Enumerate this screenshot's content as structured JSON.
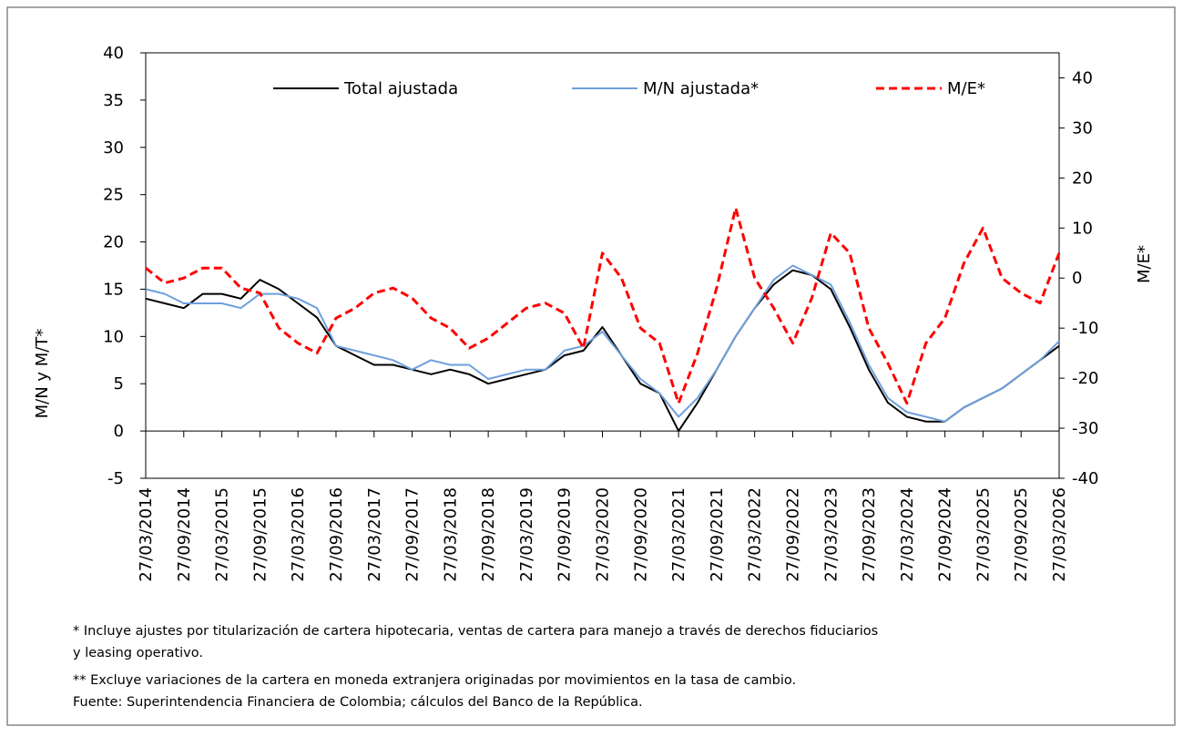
{
  "chart_data": {
    "type": "line",
    "ylabel": "M/N y M/T*",
    "y2label": "M/E*",
    "ylim": [
      -5,
      40
    ],
    "yticks": [
      -5,
      0,
      5,
      10,
      15,
      20,
      25,
      30,
      35,
      40
    ],
    "y2lim": [
      -40,
      45
    ],
    "y2ticks": [
      -40,
      -30,
      -20,
      -10,
      0,
      10,
      20,
      30,
      40
    ],
    "xlim": [
      "27/03/2014",
      "27/03/2026"
    ],
    "xticks": [
      "27/03/2014",
      "27/09/2014",
      "27/03/2015",
      "27/09/2015",
      "27/03/2016",
      "27/09/2016",
      "27/03/2017",
      "27/09/2017",
      "27/03/2018",
      "27/09/2018",
      "27/03/2019",
      "27/09/2019",
      "27/03/2020",
      "27/09/2020",
      "27/03/2021",
      "27/09/2021",
      "27/03/2022",
      "27/09/2022",
      "27/03/2023",
      "27/09/2023",
      "27/03/2024",
      "27/09/2024",
      "27/03/2025",
      "27/09/2025",
      "27/03/2026"
    ],
    "x": [
      "27/03/2014",
      "27/06/2014",
      "27/09/2014",
      "27/12/2014",
      "27/03/2015",
      "27/06/2015",
      "27/09/2015",
      "27/12/2015",
      "27/03/2016",
      "27/06/2016",
      "27/09/2016",
      "27/12/2016",
      "27/03/2017",
      "27/06/2017",
      "27/09/2017",
      "27/12/2017",
      "27/03/2018",
      "27/06/2018",
      "27/09/2018",
      "27/12/2018",
      "27/03/2019",
      "27/06/2019",
      "27/09/2019",
      "27/12/2019",
      "27/03/2020",
      "27/06/2020",
      "27/09/2020",
      "27/12/2020",
      "27/03/2021",
      "27/06/2021",
      "27/09/2021",
      "27/12/2021",
      "27/03/2022",
      "27/06/2022",
      "27/09/2022",
      "27/12/2022",
      "27/03/2023",
      "27/06/2023",
      "27/09/2023",
      "27/12/2023",
      "27/03/2024",
      "27/06/2024",
      "27/09/2024",
      "27/12/2024",
      "27/03/2025",
      "27/06/2025",
      "27/09/2025",
      "27/12/2025",
      "27/03/2026"
    ],
    "series": [
      {
        "name": "Total ajustada",
        "color": "#000000",
        "dashed": false,
        "values": [
          14,
          13.5,
          13,
          14.5,
          14.5,
          14,
          16,
          15,
          13.5,
          12,
          9,
          8,
          7,
          7,
          6.5,
          6,
          6.5,
          6,
          5,
          5.5,
          6,
          6.5,
          8,
          8.5,
          11,
          8,
          5,
          4,
          0,
          3,
          6.5,
          10,
          13,
          15.5,
          17,
          16.5,
          15,
          11,
          6.5,
          3,
          1.5,
          1,
          1,
          2.5,
          3.5,
          4.5,
          6,
          7.5,
          9
        ]
      },
      {
        "name": "M/N ajustada*",
        "color": "#6fa0dc",
        "dashed": false,
        "values": [
          15,
          14.5,
          13.5,
          13.5,
          13.5,
          13,
          14.5,
          14.5,
          14,
          13,
          9,
          8.5,
          8,
          7.5,
          6.5,
          7.5,
          7,
          7,
          5.5,
          6,
          6.5,
          6.5,
          8.5,
          9,
          10.5,
          8,
          5.5,
          4,
          1.5,
          3.5,
          6.5,
          10,
          13,
          16,
          17.5,
          16.5,
          15.5,
          11.5,
          7,
          3.5,
          2,
          1.5,
          1,
          2.5,
          3.5,
          4.5,
          6,
          7.5,
          9.5
        ]
      },
      {
        "name": "M/E*",
        "color": "#ff0000",
        "dashed": true,
        "axis": "y2",
        "values": [
          2,
          -1,
          0,
          2,
          2,
          -2,
          -3,
          -10,
          -13,
          -15,
          -8,
          -6,
          -3,
          -2,
          -4,
          -8,
          -10,
          -14,
          -12,
          -9,
          -6,
          -5,
          -7,
          -14,
          5,
          0,
          -10,
          -13,
          -25,
          -15,
          -2,
          14,
          0,
          -6,
          -13,
          -4,
          9,
          5,
          -10,
          -17,
          -25,
          -13,
          -8,
          3,
          10,
          0,
          -3,
          -5,
          5
        ]
      }
    ],
    "notes": [
      "* Incluye ajustes por titularización de cartera hipotecaria, ventas de cartera para manejo a través de derechos fiduciarios",
      "y leasing operativo.",
      "** Excluye variaciones de la cartera en moneda extranjera originadas por movimientos en la tasa de cambio.",
      "Fuente: Superintendencia Financiera de Colombia; cálculos del Banco de la República."
    ]
  }
}
